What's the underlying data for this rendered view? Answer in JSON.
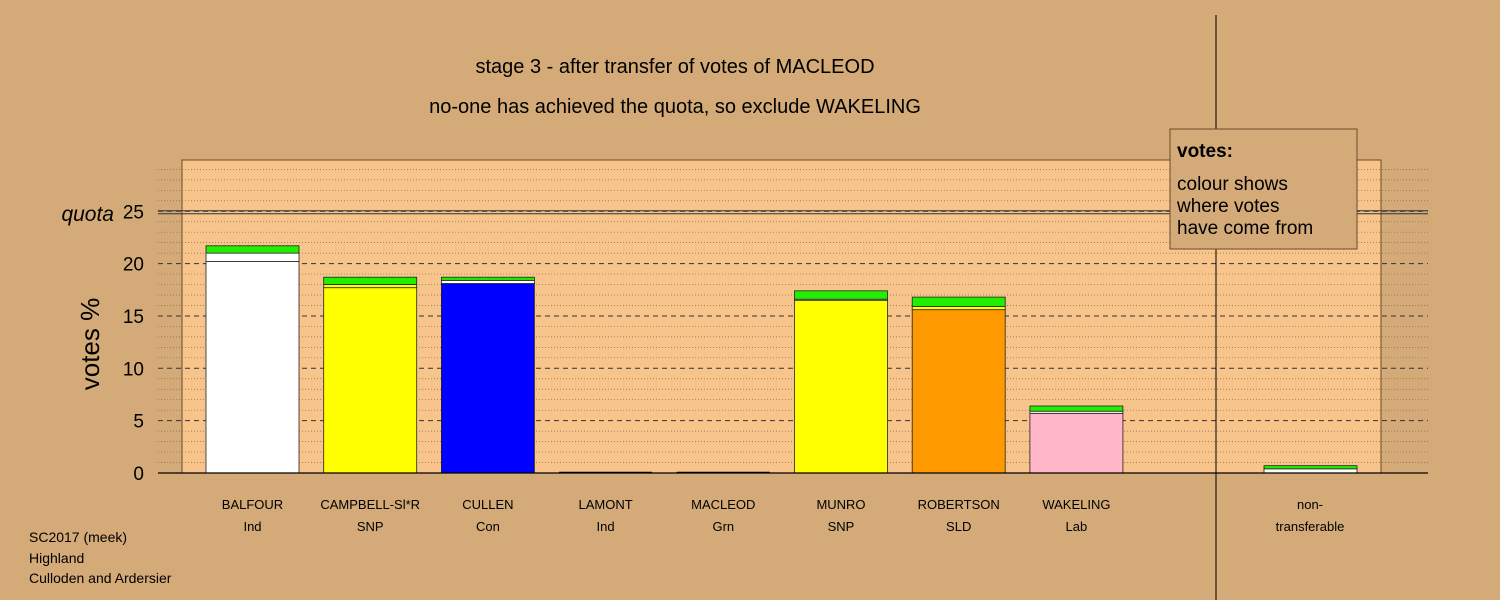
{
  "chart_data": {
    "type": "bar",
    "title": "stage 3 - after transfer of votes of MACLEOD",
    "subtitle": "no-one has achieved the quota, so exclude WAKELING",
    "ylabel": "votes %",
    "ylim": [
      0,
      30
    ],
    "yticks": [
      0,
      5,
      10,
      15,
      20,
      25
    ],
    "quota": 24.9,
    "quota_label": "quota",
    "grid": true,
    "candidates": [
      {
        "name": "BALFOUR",
        "party": "Ind",
        "segments": [
          {
            "value": 20.2,
            "color": "#ffffff"
          },
          {
            "value": 0.8,
            "color": "#ffffff"
          },
          {
            "value": 0.7,
            "color": "#22ee00"
          }
        ]
      },
      {
        "name": "CAMPBELL-Sl*R",
        "party": "SNP",
        "segments": [
          {
            "value": 17.7,
            "color": "#ffff00"
          },
          {
            "value": 0.3,
            "color": "#ffff00"
          },
          {
            "value": 0.7,
            "color": "#22ee00"
          }
        ]
      },
      {
        "name": "CULLEN",
        "party": "Con",
        "segments": [
          {
            "value": 18.1,
            "color": "#0000ff"
          },
          {
            "value": 0.3,
            "color": "#ffffff"
          },
          {
            "value": 0.3,
            "color": "#22ee00"
          }
        ]
      },
      {
        "name": "LAMONT",
        "party": "Ind",
        "segments": []
      },
      {
        "name": "MACLEOD",
        "party": "Grn",
        "segments": []
      },
      {
        "name": "MUNRO",
        "party": "SNP",
        "segments": [
          {
            "value": 16.5,
            "color": "#ffff00"
          },
          {
            "value": 0.1,
            "color": "#ffffff"
          },
          {
            "value": 0.8,
            "color": "#22ee00"
          }
        ]
      },
      {
        "name": "ROBERTSON",
        "party": "SLD",
        "segments": [
          {
            "value": 15.6,
            "color": "#ff9900"
          },
          {
            "value": 0.3,
            "color": "#ffff00"
          },
          {
            "value": 0.9,
            "color": "#22ee00"
          }
        ]
      },
      {
        "name": "WAKELING",
        "party": "Lab",
        "segments": [
          {
            "value": 5.7,
            "color": "#ffb6c8"
          },
          {
            "value": 0.2,
            "color": "#ffffff"
          },
          {
            "value": 0.5,
            "color": "#22ee00"
          }
        ]
      }
    ],
    "nontransferable": {
      "label_line1": "non-",
      "label_line2": "transferable",
      "segments": [
        {
          "value": 0.4,
          "color": "#ffffff"
        },
        {
          "value": 0.3,
          "color": "#22ee00"
        }
      ]
    },
    "legend": {
      "title": "votes:",
      "lines": [
        "colour shows",
        "where votes",
        "have come from"
      ],
      "position": "top-right"
    }
  },
  "footer": {
    "line1": "SC2017 (meek)",
    "line2": "Highland",
    "line3": "Culloden and Ardersier"
  }
}
